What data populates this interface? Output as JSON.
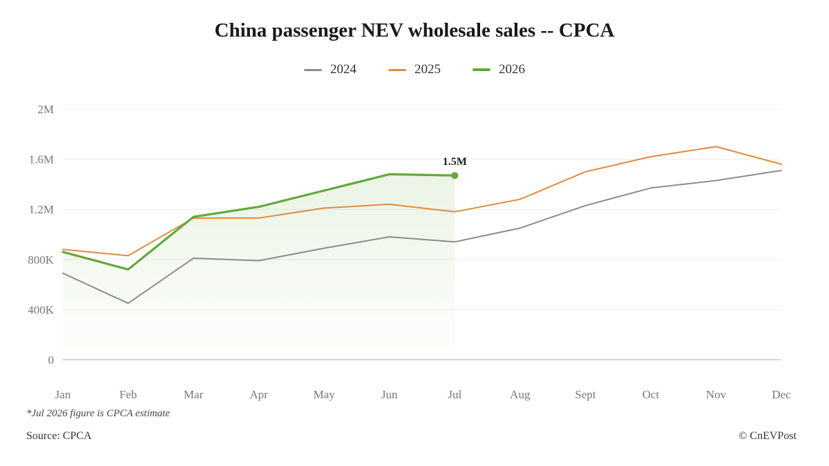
{
  "chart_data": {
    "type": "line",
    "title": "China passenger NEV wholesale sales -- CPCA",
    "categories": [
      "Jan",
      "Feb",
      "Mar",
      "Apr",
      "May",
      "Jun",
      "Jul",
      "Aug",
      "Sept",
      "Oct",
      "Nov",
      "Dec"
    ],
    "y_ticks": [
      {
        "value": 0,
        "label": "0"
      },
      {
        "value": 400000,
        "label": "400K"
      },
      {
        "value": 800000,
        "label": "800K"
      },
      {
        "value": 1200000,
        "label": "1.2M"
      },
      {
        "value": 1600000,
        "label": "1.6M"
      },
      {
        "value": 2000000,
        "label": "2M"
      }
    ],
    "ylim": [
      0,
      2000000
    ],
    "grid": true,
    "legend_position": "top-center",
    "series": [
      {
        "name": "2024",
        "color": "#8c8c8c",
        "values": [
          690000,
          450000,
          810000,
          790000,
          890000,
          980000,
          940000,
          1050000,
          1230000,
          1370000,
          1430000,
          1510000
        ]
      },
      {
        "name": "2025",
        "color": "#e08a3c",
        "values": [
          880000,
          830000,
          1130000,
          1130000,
          1210000,
          1240000,
          1180000,
          1280000,
          1500000,
          1620000,
          1700000,
          1560000
        ]
      },
      {
        "name": "2026",
        "color": "#62a83a",
        "values": [
          860000,
          720000,
          1140000,
          1220000,
          1350000,
          1480000,
          1470000,
          null,
          null,
          null,
          null,
          null
        ]
      }
    ],
    "annotation": {
      "series": "2026",
      "category": "Jul",
      "label": "1.5M"
    }
  },
  "footer": {
    "note": "*Jul 2026 figure is CPCA estimate",
    "source": "Source: CPCA",
    "credit": "© CnEVPost"
  }
}
